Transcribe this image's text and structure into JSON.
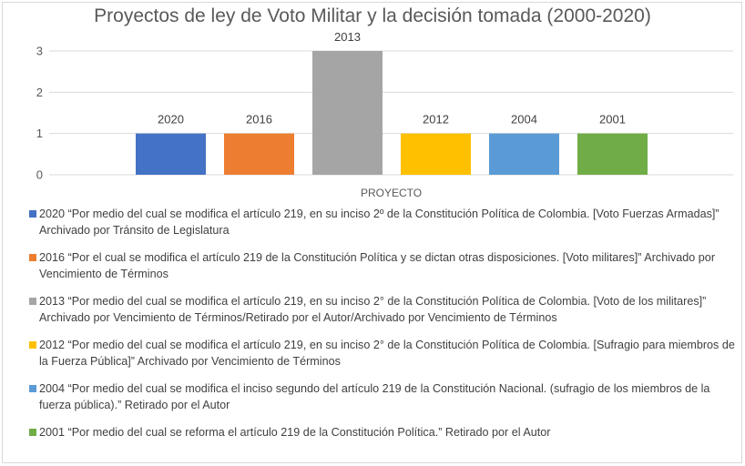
{
  "chart_data": {
    "type": "bar",
    "title": "Proyectos de ley de Voto Militar y la decisión tomada (2000-2020)",
    "xlabel": "PROYECTO",
    "ylabel": "",
    "ylim": [
      0,
      3
    ],
    "yticks": [
      0,
      1,
      2,
      3
    ],
    "categories": [
      "PROYECTO"
    ],
    "grid": true,
    "legend_position": "bottom",
    "series": [
      {
        "name": "2020 “Por medio del cual se modifica el artículo 219, en su inciso 2º de la Constitución Política de Colombia. [Voto Fuerzas Armadas]” Archivado por Tránsito de Legislatura",
        "label": "2020",
        "values": [
          1
        ],
        "color": "#4472c4"
      },
      {
        "name": "2016 “Por el cual se modifica el artículo 219 de la Constitución Política y se dictan otras disposiciones. [Voto militares]” Archivado por Vencimiento de Términos",
        "label": "2016",
        "values": [
          1
        ],
        "color": "#ed7d31"
      },
      {
        "name": "2013 “Por medio del cual se modifica el artículo 219, en su inciso 2° de la Constitución Política de Colombia. [Voto de los militares]” Archivado por Vencimiento de Términos/Retirado por el Autor/Archivado por Vencimiento de Términos",
        "label": "2013",
        "values": [
          3
        ],
        "color": "#a5a5a5"
      },
      {
        "name": "2012 “Por medio del cual se modifica el artículo 219, en su inciso 2° de la Constitución Política de Colombia. [Sufragio para miembros de la Fuerza Pública]” Archivado por Vencimiento de Términos",
        "label": "2012",
        "values": [
          1
        ],
        "color": "#ffc000"
      },
      {
        "name": "2004 “Por medio del cual se modifica el inciso segundo del artículo 219 de la Constitución Nacional. (sufragio de los miembros de la fuerza pública).” Retirado por el Autor",
        "label": "2004",
        "values": [
          1
        ],
        "color": "#5b9bd5"
      },
      {
        "name": "2001 “Por medio del cual se reforma el artículo 219 de la Constitución Política.” Retirado por el Autor",
        "label": "2001",
        "values": [
          1
        ],
        "color": "#70ad47"
      }
    ]
  }
}
